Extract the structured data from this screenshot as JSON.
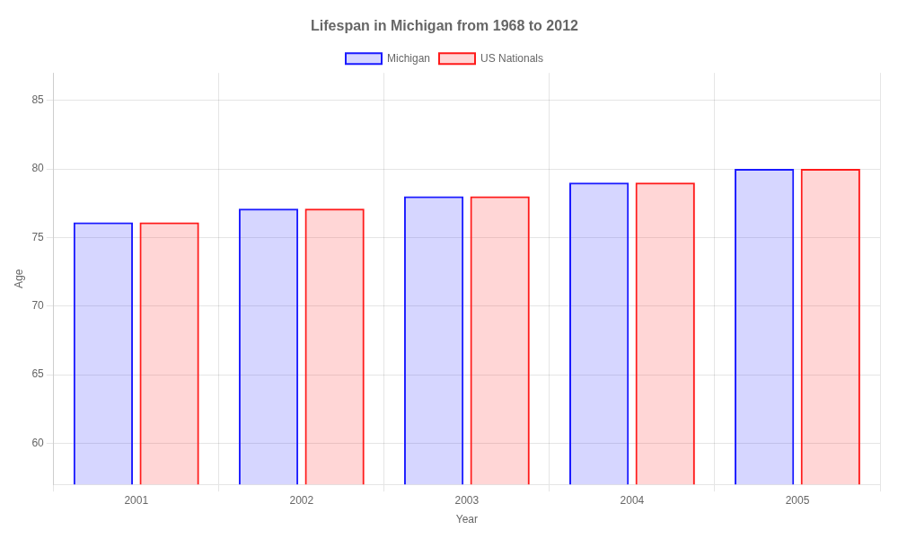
{
  "chart_data": {
    "type": "bar",
    "title": "Lifespan in Michigan from 1968 to 2012",
    "xlabel": "Year",
    "ylabel": "Age",
    "categories": [
      "2001",
      "2002",
      "2003",
      "2004",
      "2005"
    ],
    "series": [
      {
        "name": "Michigan",
        "color": "#1a1aff",
        "values": [
          76.1,
          77.1,
          78.0,
          79.0,
          80.0
        ]
      },
      {
        "name": "US Nationals",
        "color": "#ff1a1a",
        "values": [
          76.1,
          77.1,
          78.0,
          79.0,
          80.0
        ]
      }
    ],
    "ylim": [
      57,
      87
    ],
    "yticks": [
      60,
      65,
      70,
      75,
      80,
      85
    ],
    "grid": true,
    "legend": "top"
  }
}
